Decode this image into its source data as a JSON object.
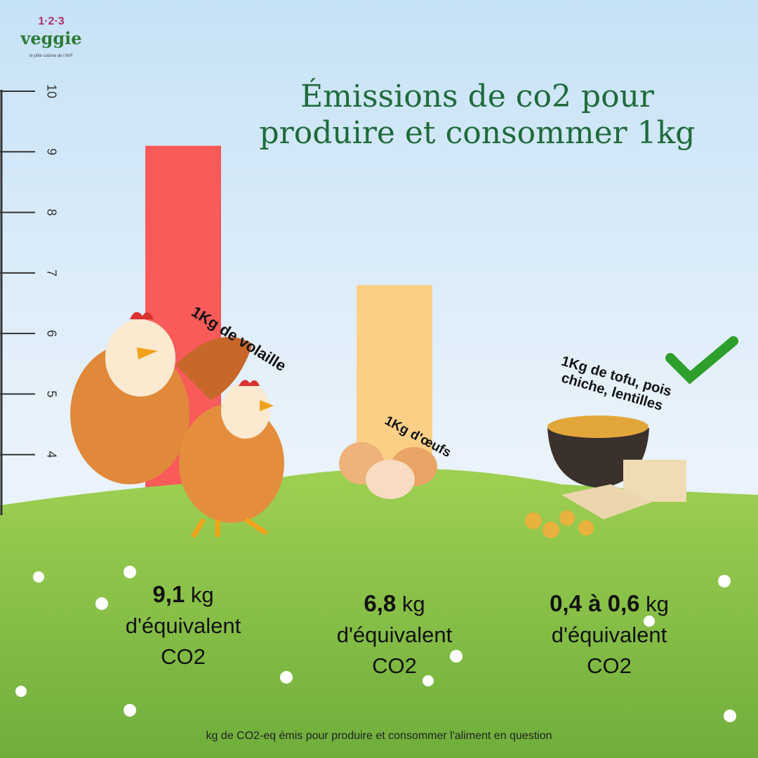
{
  "header": {
    "logo_numbers": "1·2·3",
    "logo_name": "veggie",
    "logo_tagline": "le pôle cuisine de l'AVF"
  },
  "chart_data": {
    "type": "bar",
    "title": [
      "Émissions de co2 pour",
      "produire et consommer 1kg"
    ],
    "categories": [
      "1Kg de volaille",
      "1Kg d'œufs",
      "1Kg de tofu, pois chiche, lentilles"
    ],
    "values": [
      9.1,
      6.8,
      [
        0.4,
        0.6
      ]
    ],
    "value_labels": [
      "9,1",
      "6,8",
      "0,4 à 0,6"
    ],
    "unit": "kg",
    "unit_label": "d'équivalent CO2",
    "colors": [
      "#f95a5a",
      "#fbd086",
      "#8bc34a"
    ],
    "ylim": [
      3,
      10
    ],
    "yticks": [
      4,
      5,
      6,
      7,
      8,
      9,
      10
    ],
    "footnote": "kg de CO2-eq émis pour produire et consommer l'aliment en question"
  }
}
